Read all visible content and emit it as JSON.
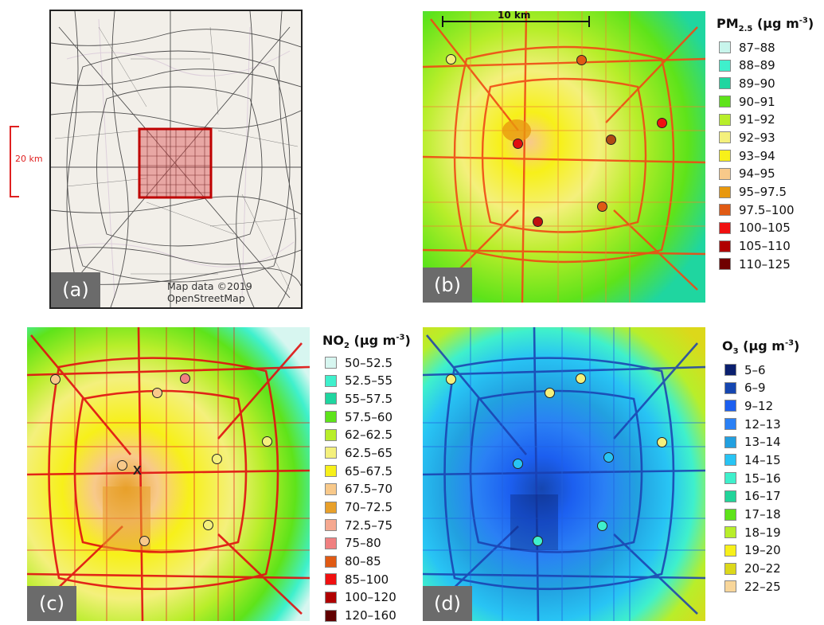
{
  "panel_a": {
    "label": "(a)",
    "credit": "Map data ©2019 OpenStreetMap",
    "scale_label": "20 km"
  },
  "panel_b": {
    "label": "(b)",
    "scale_label": "10 km",
    "legend_title_main": "PM",
    "legend_title_sub": "2.5",
    "legend_title_unit": "(µg m",
    "legend_title_sup": "-3",
    "legend_title_end": ")",
    "legend": [
      {
        "label": "87–88",
        "color": "#c8f5ec"
      },
      {
        "label": "88–89",
        "color": "#3ff0cc"
      },
      {
        "label": "89–90",
        "color": "#1fd6a0"
      },
      {
        "label": "90–91",
        "color": "#5ee31a"
      },
      {
        "label": "91–92",
        "color": "#b8ee2a"
      },
      {
        "label": "92–93",
        "color": "#f4f07c"
      },
      {
        "label": "93–94",
        "color": "#f7f01a"
      },
      {
        "label": "94–95",
        "color": "#f8c98a"
      },
      {
        "label": "95–97.5",
        "color": "#e8980e"
      },
      {
        "label": "97.5–100",
        "color": "#e05a14"
      },
      {
        "label": "100–105",
        "color": "#f01010"
      },
      {
        "label": "105–110",
        "color": "#b00000"
      },
      {
        "label": "110–125",
        "color": "#700000"
      }
    ]
  },
  "panel_c": {
    "label": "(c)",
    "marker": "X",
    "legend_title_main": "NO",
    "legend_title_sub": "2",
    "legend_title_unit": "(µg m",
    "legend_title_sup": "-3",
    "legend_title_end": ")",
    "legend": [
      {
        "label": "50–52.5",
        "color": "#d7f6f0"
      },
      {
        "label": "52.5–55",
        "color": "#3ff0cc"
      },
      {
        "label": "55–57.5",
        "color": "#1fd6a0"
      },
      {
        "label": "57.5–60",
        "color": "#5ee31a"
      },
      {
        "label": "62–62.5",
        "color": "#b8ee2a"
      },
      {
        "label": "62.5–65",
        "color": "#f4f07c"
      },
      {
        "label": "65–67.5",
        "color": "#f7f01a"
      },
      {
        "label": "67.5–70",
        "color": "#f8c98a"
      },
      {
        "label": "70–72.5",
        "color": "#e8a02a"
      },
      {
        "label": "72.5–75",
        "color": "#f5a890"
      },
      {
        "label": "75–80",
        "color": "#f08080"
      },
      {
        "label": "80–85",
        "color": "#e05a14"
      },
      {
        "label": "85–100",
        "color": "#f01010"
      },
      {
        "label": "100–120",
        "color": "#b00000"
      },
      {
        "label": "120–160",
        "color": "#600000"
      }
    ]
  },
  "panel_d": {
    "label": "(d)",
    "legend_title_main": "O",
    "legend_title_sub": "3",
    "legend_title_unit": "(µg m",
    "legend_title_sup": "-3",
    "legend_title_end": ")",
    "legend": [
      {
        "label": "5–6",
        "color": "#0a1f6e"
      },
      {
        "label": "6–9",
        "color": "#1546b0"
      },
      {
        "label": "9–12",
        "color": "#1c5ff0"
      },
      {
        "label": "12–13",
        "color": "#2a80f5"
      },
      {
        "label": "13–14",
        "color": "#22a0e0"
      },
      {
        "label": "14–15",
        "color": "#28c4f4"
      },
      {
        "label": "15–16",
        "color": "#3ff0cc"
      },
      {
        "label": "16–17",
        "color": "#22d49a"
      },
      {
        "label": "17–18",
        "color": "#5ee31a"
      },
      {
        "label": "18–19",
        "color": "#b8ee2a"
      },
      {
        "label": "19–20",
        "color": "#f7f01a"
      },
      {
        "label": "20–22",
        "color": "#dcd81a"
      },
      {
        "label": "22–25",
        "color": "#f8d69a"
      }
    ]
  }
}
